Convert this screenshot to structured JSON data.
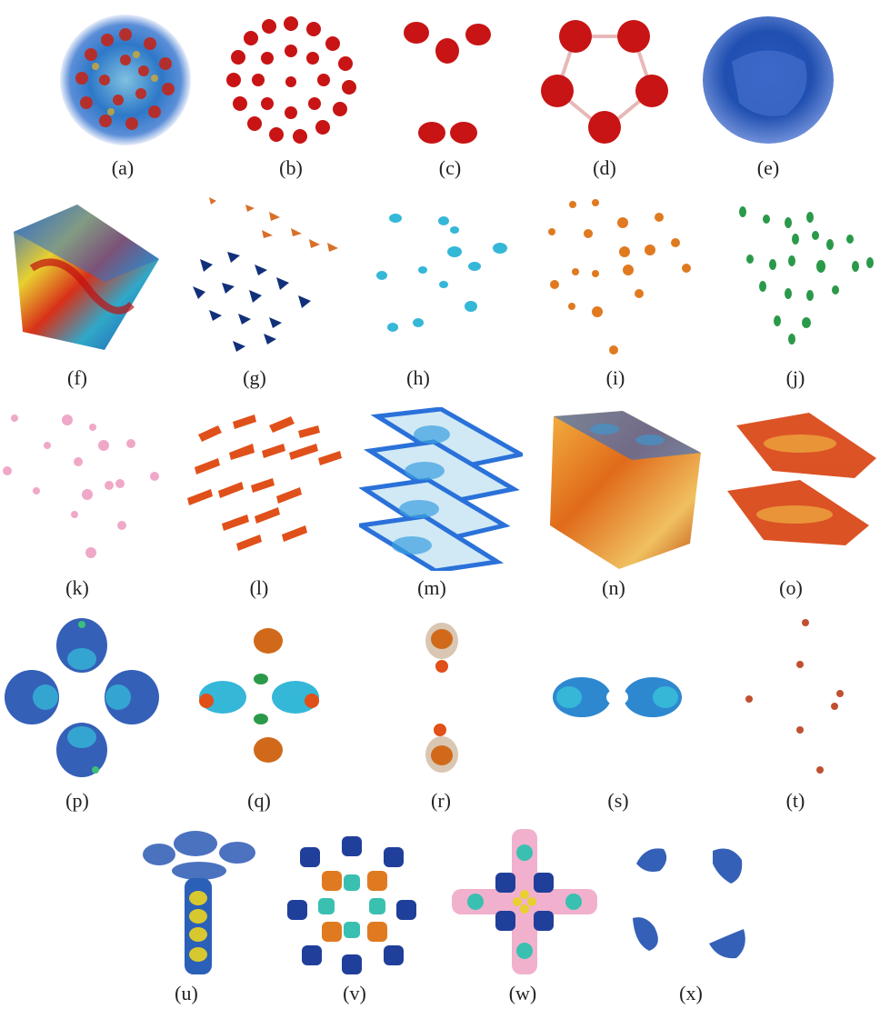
{
  "figure": {
    "panels": [
      {
        "id": "a",
        "label": "(a)"
      },
      {
        "id": "b",
        "label": "(b)"
      },
      {
        "id": "c",
        "label": "(c)"
      },
      {
        "id": "d",
        "label": "(d)"
      },
      {
        "id": "e",
        "label": "(e)"
      },
      {
        "id": "f",
        "label": "(f)"
      },
      {
        "id": "g",
        "label": "(g)"
      },
      {
        "id": "h",
        "label": "(h)"
      },
      {
        "id": "i",
        "label": "(i)"
      },
      {
        "id": "j",
        "label": "(j)"
      },
      {
        "id": "k",
        "label": "(k)"
      },
      {
        "id": "l",
        "label": "(l)"
      },
      {
        "id": "m",
        "label": "(m)"
      },
      {
        "id": "n",
        "label": "(n)"
      },
      {
        "id": "o",
        "label": "(o)"
      },
      {
        "id": "p",
        "label": "(p)"
      },
      {
        "id": "q",
        "label": "(q)"
      },
      {
        "id": "r",
        "label": "(r)"
      },
      {
        "id": "s",
        "label": "(s)"
      },
      {
        "id": "t",
        "label": "(t)"
      },
      {
        "id": "u",
        "label": "(u)"
      },
      {
        "id": "v",
        "label": "(v)"
      },
      {
        "id": "w",
        "label": "(w)"
      },
      {
        "id": "x",
        "label": "(x)"
      }
    ]
  },
  "colors": {
    "red": "#c81414",
    "blue": "#1f4fb0",
    "navy": "#10307a",
    "cyan": "#35b7d8",
    "orange": "#e07a20",
    "green": "#2a9a4a",
    "pink": "#f0a8c8",
    "teal": "#3ac0b0",
    "yellow": "#e8d030"
  }
}
